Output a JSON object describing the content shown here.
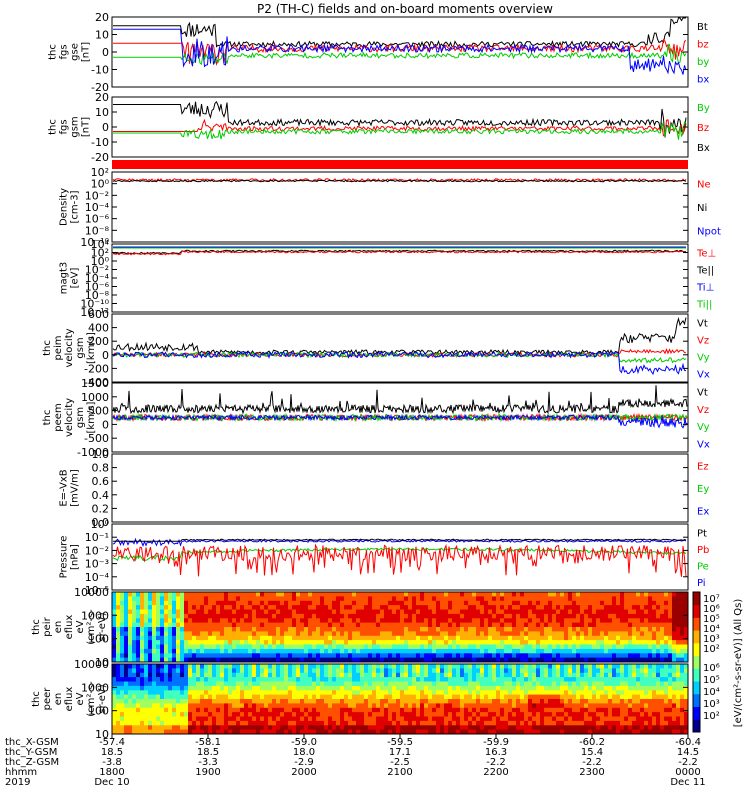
{
  "title": "P2 (TH-C) fields and on-board moments overview",
  "chart_data": {
    "type": "line",
    "x_axis": {
      "rows": [
        {
          "label": "thc_X-GSM",
          "values": [
            "-57.4",
            "-58.1",
            "-59.0",
            "-59.5",
            "-59.9",
            "-60.2",
            "-60.4"
          ]
        },
        {
          "label": "thc_Y-GSM",
          "values": [
            "18.5",
            "18.5",
            "18.0",
            "17.1",
            "16.3",
            "15.4",
            "14.5"
          ]
        },
        {
          "label": "thc_Z-GSM",
          "values": [
            "-3.8",
            "-3.3",
            "-2.9",
            "-2.5",
            "-2.2",
            "-2.2",
            "-2.2"
          ]
        },
        {
          "label": "hhmm",
          "values": [
            "1800",
            "1900",
            "2000",
            "2100",
            "2200",
            "2300",
            "0000"
          ]
        },
        {
          "label": "2019",
          "values": [
            "Dec 10",
            "",
            "",
            "",
            "",
            "",
            "Dec 11"
          ]
        }
      ]
    },
    "panels": [
      {
        "ylabel": [
          "thc",
          "fgs",
          "gse",
          "[nT]"
        ],
        "yticks": [
          "20",
          "10",
          "0",
          "-10",
          "-20"
        ],
        "ylim": [
          -20,
          20
        ],
        "legend": [
          {
            "text": "Bt",
            "color": "#000000"
          },
          {
            "text": "bz",
            "color": "#ff0000"
          },
          {
            "text": "by",
            "color": "#00cc00"
          },
          {
            "text": "bx",
            "color": "#0000ff"
          }
        ]
      },
      {
        "ylabel": [
          "thc",
          "fgs",
          "gsm",
          "[nT]"
        ],
        "yticks": [
          "20",
          "10",
          "0",
          "-10",
          "-20"
        ],
        "ylim": [
          -20,
          20
        ],
        "legend": [
          {
            "text": "By",
            "color": "#00cc00"
          },
          {
            "text": "Bz",
            "color": "#ff0000"
          },
          {
            "text": "Bx",
            "color": "#000000"
          }
        ]
      },
      {
        "ylabel": [
          "Density",
          "[cm-3]"
        ],
        "yticks": [
          "10²",
          "10⁰",
          "10⁻²",
          "10⁻⁴",
          "10⁻⁶",
          "10⁻⁸",
          "10⁻¹⁰"
        ],
        "ylim": [
          1e-10,
          100.0
        ],
        "log": true,
        "legend": [
          {
            "text": "Ne",
            "color": "#ff0000"
          },
          {
            "text": "Ni",
            "color": "#000000"
          },
          {
            "text": "Npot",
            "color": "#0000ff"
          }
        ]
      },
      {
        "ylabel": [
          "magt3",
          "[eV]"
        ],
        "yticks": [
          "10⁴",
          "10²",
          "10⁰",
          "10⁻²",
          "10⁻⁴",
          "10⁻⁶",
          "10⁻⁸",
          "10⁻¹⁰",
          "10⁻¹²"
        ],
        "ylim": [
          1e-12,
          10000.0
        ],
        "log": true,
        "legend": [
          {
            "text": "Te⊥",
            "color": "#ff0000"
          },
          {
            "text": "Te||",
            "color": "#000000"
          },
          {
            "text": "Ti⊥",
            "color": "#0000ff"
          },
          {
            "text": "Ti||",
            "color": "#00cc00"
          }
        ]
      },
      {
        "ylabel": [
          "thc",
          "peim",
          "velocity",
          "gsm",
          "[km/s]"
        ],
        "yticks": [
          "600",
          "400",
          "200",
          "0",
          "-200",
          "-400"
        ],
        "ylim": [
          -400,
          600
        ],
        "legend": [
          {
            "text": "Vt",
            "color": "#000000"
          },
          {
            "text": "Vz",
            "color": "#ff0000"
          },
          {
            "text": "Vy",
            "color": "#00cc00"
          },
          {
            "text": "Vx",
            "color": "#0000ff"
          }
        ]
      },
      {
        "ylabel": [
          "thc",
          "peem",
          "velocity",
          "gsm",
          "[km/s]"
        ],
        "yticks": [
          "1500",
          "1000",
          "500",
          "0",
          "-500",
          "-1000"
        ],
        "ylim": [
          -1500,
          1500
        ],
        "legend": [
          {
            "text": "Vt",
            "color": "#000000"
          },
          {
            "text": "Vz",
            "color": "#ff0000"
          },
          {
            "text": "Vy",
            "color": "#00cc00"
          },
          {
            "text": "Vx",
            "color": "#0000ff"
          }
        ]
      },
      {
        "ylabel": [
          "E=-VxB",
          "[mV/m]"
        ],
        "yticks": [
          "1.0",
          "0.8",
          "0.6",
          "0.4",
          "0.2",
          "0.0"
        ],
        "ylim": [
          0,
          1
        ],
        "legend": [
          {
            "text": "Ez",
            "color": "#ff0000"
          },
          {
            "text": "Ey",
            "color": "#00cc00"
          },
          {
            "text": "Ex",
            "color": "#0000ff"
          }
        ]
      },
      {
        "ylabel": [
          "Pressure",
          "[nPa]"
        ],
        "yticks": [
          "10⁰",
          "10⁻¹",
          "10⁻²",
          "10⁻³",
          "10⁻⁴",
          "10⁻⁵"
        ],
        "ylim": [
          1e-05,
          1
        ],
        "log": true,
        "legend": [
          {
            "text": "Pt",
            "color": "#000000"
          },
          {
            "text": "Pb",
            "color": "#ff0000"
          },
          {
            "text": "Pe",
            "color": "#00cc00"
          },
          {
            "text": "Pi",
            "color": "#0000ff"
          }
        ]
      },
      {
        "ylabel": [
          "thc",
          "peir",
          "en",
          "eflux",
          "eV",
          "(cm²-s-",
          "sr-eV)"
        ],
        "yticks": [
          "10000",
          "1000",
          "100",
          "10"
        ],
        "spectrogram": true
      },
      {
        "ylabel": [
          "thc",
          "peer",
          "en",
          "eflux",
          "eV",
          "(cm²-s-",
          "sr-eV)"
        ],
        "yticks": [
          "10000",
          "1000",
          "100",
          "10"
        ],
        "spectrogram": true
      }
    ],
    "colorbar": {
      "label": "[eV/(cm²-s-sr-eV)] (All Qs)",
      "ticks": [
        "10⁷",
        "10⁶",
        "10⁵",
        "10⁴",
        "10³",
        "10²"
      ],
      "ticks2": [
        "10⁶",
        "10⁵",
        "10⁴",
        "10³",
        "10²"
      ]
    }
  }
}
